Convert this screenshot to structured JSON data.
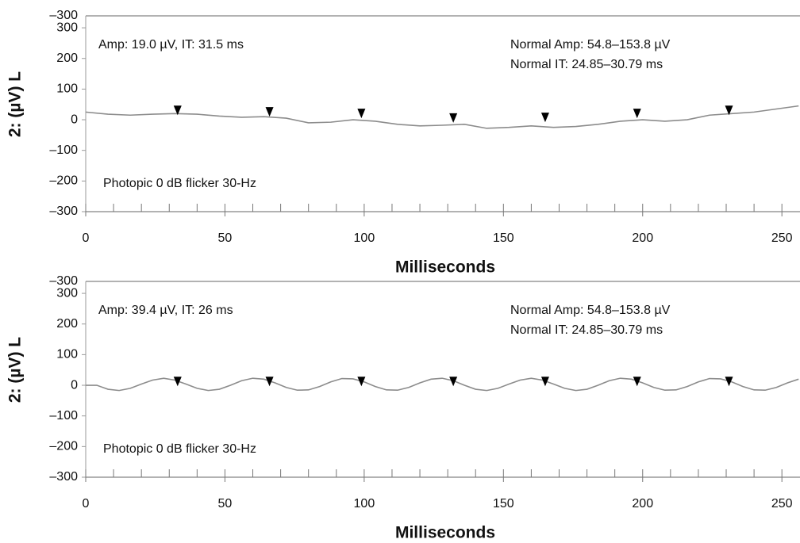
{
  "chart_data": [
    {
      "type": "line",
      "ylabel": "2: (µV) L",
      "xlabel": "Milliseconds",
      "top_label": "–300",
      "annotations": [
        "Amp: 19.0 µV, IT: 31.5 ms",
        "Normal Amp: 54.8–153.8 µV",
        "Normal IT: 24.85–30.79 ms",
        "Photopic 0 dB flicker 30-Hz"
      ],
      "xlim": [
        0,
        256.5
      ],
      "ylim": [
        -300,
        339
      ],
      "xticks": [
        0,
        50,
        100,
        150,
        200,
        250
      ],
      "xminorticks": [
        10,
        20,
        30,
        40,
        60,
        70,
        80,
        90,
        110,
        120,
        130,
        140,
        160,
        170,
        180,
        190,
        210,
        220,
        230,
        240
      ],
      "yticks": [
        300,
        200,
        100,
        0,
        {
          "value": -100,
          "label": "–100"
        },
        {
          "value": -200,
          "label": "–200"
        },
        {
          "value": -300,
          "label": "–300"
        }
      ],
      "series": [
        {
          "color": "#8c8c8c",
          "x": [
            0,
            8,
            16,
            24,
            32,
            40,
            48,
            56,
            64,
            72,
            80,
            88,
            96,
            104,
            112,
            120,
            128,
            136,
            144,
            152,
            160,
            168,
            176,
            184,
            192,
            200,
            208,
            216,
            224,
            232,
            240,
            248,
            256
          ],
          "values": [
            25,
            18,
            15,
            18,
            20,
            18,
            12,
            8,
            10,
            5,
            -10,
            -8,
            0,
            -5,
            -15,
            -20,
            -18,
            -15,
            -28,
            -25,
            -20,
            -25,
            -22,
            -15,
            -5,
            0,
            -5,
            0,
            15,
            20,
            25,
            35,
            45
          ]
        }
      ],
      "markers": {
        "color": "#000000",
        "x": [
          33,
          66,
          99,
          132,
          165,
          198,
          231
        ],
        "values": [
          15,
          10,
          5,
          -10,
          -8,
          5,
          15
        ]
      }
    },
    {
      "type": "line",
      "ylabel": "2: (µV) L",
      "xlabel": "Milliseconds",
      "top_label": "–300",
      "annotations": [
        "Amp: 39.4 µV, IT: 26 ms",
        "Normal Amp: 54.8–153.8 µV",
        "Normal IT: 24.85–30.79 ms",
        "Photopic 0 dB flicker 30-Hz"
      ],
      "xlim": [
        0,
        256.5
      ],
      "ylim": [
        -300,
        339
      ],
      "xticks": [
        0,
        50,
        100,
        150,
        200,
        250
      ],
      "xminorticks": [
        10,
        20,
        30,
        40,
        60,
        70,
        80,
        90,
        110,
        120,
        130,
        140,
        160,
        170,
        180,
        190,
        210,
        220,
        230,
        240
      ],
      "yticks": [
        300,
        200,
        100,
        0,
        {
          "value": -100,
          "label": "–100"
        },
        {
          "value": -200,
          "label": "–200"
        },
        {
          "value": -300,
          "label": "–300"
        }
      ],
      "series": [
        {
          "color": "#8c8c8c",
          "x": [
            0,
            4,
            8,
            12,
            16,
            20,
            24,
            28,
            32,
            36,
            40,
            44,
            48,
            52,
            56,
            60,
            64,
            68,
            72,
            76,
            80,
            84,
            88,
            92,
            96,
            100,
            104,
            108,
            112,
            116,
            120,
            124,
            128,
            132,
            136,
            140,
            144,
            148,
            152,
            156,
            160,
            164,
            168,
            172,
            176,
            180,
            184,
            188,
            192,
            196,
            200,
            204,
            208,
            212,
            216,
            220,
            224,
            228,
            232,
            236,
            240,
            244,
            248,
            252,
            256
          ],
          "values": [
            0,
            0,
            -13,
            -17,
            -10,
            4,
            17,
            23,
            17,
            4,
            -10,
            -17,
            -13,
            0,
            15,
            23,
            20,
            8,
            -7,
            -16,
            -15,
            -4,
            11,
            22,
            21,
            11,
            -4,
            -15,
            -16,
            -7,
            8,
            20,
            23,
            15,
            0,
            -13,
            -17,
            -10,
            4,
            17,
            23,
            17,
            4,
            -10,
            -17,
            -13,
            0,
            15,
            23,
            20,
            8,
            -7,
            -16,
            -15,
            -4,
            11,
            22,
            21,
            11,
            -4,
            -15,
            -16,
            -7,
            8,
            20
          ]
        }
      ],
      "markers": {
        "color": "#000000",
        "x": [
          33,
          66,
          99,
          132,
          165,
          198,
          231
        ],
        "values": [
          -3,
          -3,
          -3,
          -3,
          -3,
          -3,
          -3
        ]
      }
    }
  ]
}
